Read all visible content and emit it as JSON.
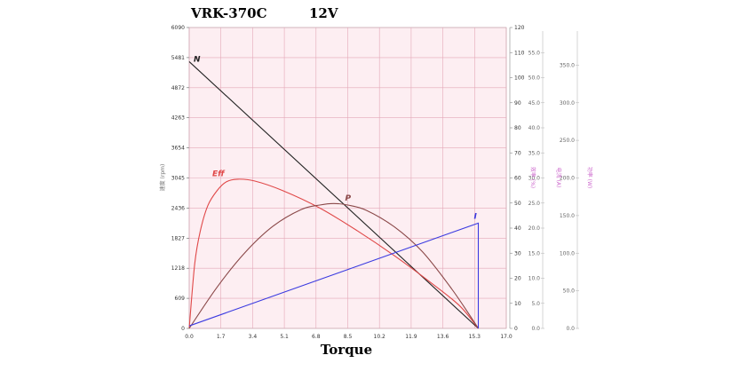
{
  "chart_data": {
    "type": "line",
    "title": "VRK-370C",
    "subtitle": "12V",
    "xlabel": "Torque",
    "ylabel_left": "速度 (rpm)",
    "ylabel_eff": "效率 (%)",
    "ylabel_current": "电流 (A)",
    "ylabel_power": "功率 (W)",
    "grid": true,
    "x_ticks": [
      "0.0",
      "1.7",
      "3.4",
      "5.1",
      "6.8",
      "8.5",
      "10.2",
      "11.9",
      "13.6",
      "15.3",
      "17.0"
    ],
    "xlim": [
      0,
      17
    ],
    "y_left_ticks": [
      "0",
      "609",
      "1218",
      "1827",
      "2436",
      "3045",
      "3654",
      "4263",
      "4872",
      "5481",
      "6090"
    ],
    "ylim_left": [
      0,
      6090
    ],
    "y_eff_ticks": [
      "0",
      "10",
      "20",
      "30",
      "40",
      "50",
      "60",
      "70",
      "80",
      "90",
      "100",
      "110",
      "120"
    ],
    "ylim_eff": [
      0,
      120
    ],
    "y_current_ticks": [
      "0.0",
      "5.0",
      "10.0",
      "15.0",
      "20.0",
      "25.0",
      "30.0",
      "35.0",
      "40.0",
      "45.0",
      "50.0",
      "55.0"
    ],
    "ylim_current": [
      0,
      60
    ],
    "y_power_ticks": [
      "0.0",
      "50.0",
      "100.0",
      "150.0",
      "200.0",
      "250.0",
      "300.0",
      "350.0"
    ],
    "ylim_power": [
      0,
      400
    ],
    "series": [
      {
        "name": "N",
        "color": "#222222",
        "x": [
          0,
          15.5
        ],
        "y_left": [
          5400,
          0
        ]
      },
      {
        "name": "Eff",
        "color": "#e04848",
        "x": [
          0,
          0.3,
          0.6,
          1.0,
          1.5,
          2.0,
          2.6,
          3.5,
          5.0,
          7.0,
          9.0,
          11.0,
          13.0,
          14.5,
          15.5
        ],
        "y_eff": [
          0,
          26,
          39,
          49,
          55,
          58.5,
          59.5,
          58.8,
          55,
          48,
          39,
          29,
          18,
          9,
          0
        ]
      },
      {
        "name": "P",
        "color": "#8a4848",
        "x": [
          0,
          1.5,
          3.0,
          4.5,
          6.0,
          7.0,
          7.75,
          8.5,
          9.5,
          11.0,
          12.5,
          14.0,
          15.0,
          15.5
        ],
        "y_power": [
          0,
          55,
          101,
          136,
          158,
          164,
          166,
          164,
          157,
          135,
          102,
          55,
          19,
          0
        ]
      },
      {
        "name": "I",
        "color": "#3a3ae0",
        "x": [
          0,
          15.5,
          15.5
        ],
        "y_current": [
          0.5,
          21.0,
          0
        ]
      }
    ]
  }
}
